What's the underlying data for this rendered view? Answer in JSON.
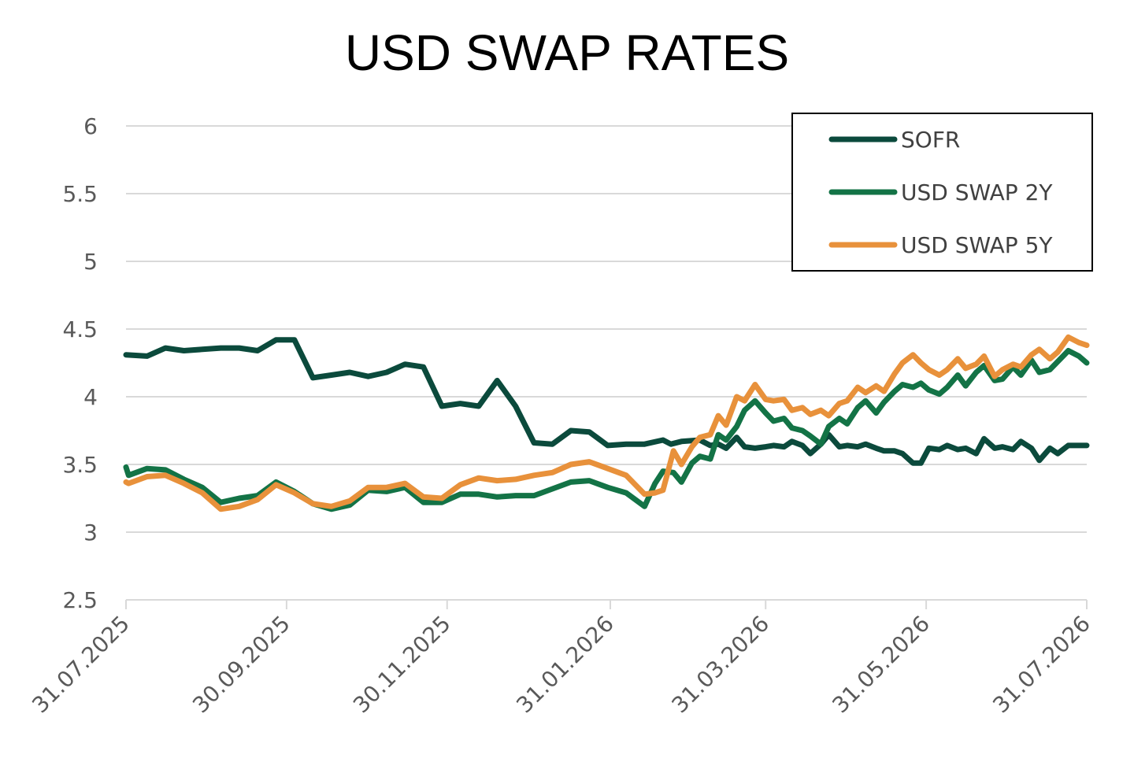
{
  "chart_data": {
    "type": "line",
    "title": "USD SWAP RATES",
    "xlabel": "",
    "ylabel": "",
    "ylim": [
      2.5,
      6
    ],
    "yticks": [
      "2.5",
      "3",
      "3.5",
      "4",
      "4.5",
      "5",
      "5.5",
      "6"
    ],
    "xlim": [
      "2025-07-31",
      "2026-07-31"
    ],
    "xticks": [
      {
        "date": "2025-07-31",
        "label": "31.07.2025"
      },
      {
        "date": "2025-09-30",
        "label": "30.09.2025"
      },
      {
        "date": "2025-11-30",
        "label": "30.11.2025"
      },
      {
        "date": "2026-01-31",
        "label": "31.01.2026"
      },
      {
        "date": "2026-03-31",
        "label": "31.03.2026"
      },
      {
        "date": "2026-05-31",
        "label": "31.05.2026"
      },
      {
        "date": "2026-07-31",
        "label": "31.07.2026"
      }
    ],
    "grid": true,
    "legend_position": "top-right",
    "series": [
      {
        "name": "SOFR",
        "color": "#0b4a3c",
        "points": [
          [
            "2025-07-31",
            4.31
          ],
          [
            "2025-08-08",
            4.3
          ],
          [
            "2025-08-15",
            4.36
          ],
          [
            "2025-08-22",
            4.34
          ],
          [
            "2025-08-29",
            4.35
          ],
          [
            "2025-09-05",
            4.36
          ],
          [
            "2025-09-12",
            4.36
          ],
          [
            "2025-09-19",
            4.34
          ],
          [
            "2025-09-26",
            4.42
          ],
          [
            "2025-10-03",
            4.42
          ],
          [
            "2025-10-10",
            4.14
          ],
          [
            "2025-10-17",
            4.16
          ],
          [
            "2025-10-24",
            4.18
          ],
          [
            "2025-10-31",
            4.15
          ],
          [
            "2025-11-07",
            4.18
          ],
          [
            "2025-11-14",
            4.24
          ],
          [
            "2025-11-21",
            4.22
          ],
          [
            "2025-11-28",
            3.93
          ],
          [
            "2025-12-05",
            3.95
          ],
          [
            "2025-12-12",
            3.93
          ],
          [
            "2025-12-19",
            4.12
          ],
          [
            "2025-12-26",
            3.93
          ],
          [
            "2026-01-02",
            3.66
          ],
          [
            "2026-01-09",
            3.65
          ],
          [
            "2026-01-16",
            3.75
          ],
          [
            "2026-01-23",
            3.74
          ],
          [
            "2026-01-30",
            3.64
          ],
          [
            "2026-02-06",
            3.65
          ],
          [
            "2026-02-13",
            3.65
          ],
          [
            "2026-02-20",
            3.68
          ],
          [
            "2026-02-23",
            3.65
          ],
          [
            "2026-02-27",
            3.67
          ],
          [
            "2026-03-06",
            3.68
          ],
          [
            "2026-03-10",
            3.64
          ],
          [
            "2026-03-13",
            3.65
          ],
          [
            "2026-03-16",
            3.62
          ],
          [
            "2026-03-20",
            3.7
          ],
          [
            "2026-03-23",
            3.63
          ],
          [
            "2026-03-27",
            3.62
          ],
          [
            "2026-03-31",
            3.63
          ],
          [
            "2026-04-03",
            3.64
          ],
          [
            "2026-04-07",
            3.63
          ],
          [
            "2026-04-10",
            3.67
          ],
          [
            "2026-04-14",
            3.64
          ],
          [
            "2026-04-17",
            3.58
          ],
          [
            "2026-04-21",
            3.65
          ],
          [
            "2026-04-24",
            3.72
          ],
          [
            "2026-04-28",
            3.63
          ],
          [
            "2026-05-01",
            3.64
          ],
          [
            "2026-05-05",
            3.63
          ],
          [
            "2026-05-08",
            3.65
          ],
          [
            "2026-05-12",
            3.62
          ],
          [
            "2026-05-15",
            3.6
          ],
          [
            "2026-05-19",
            3.6
          ],
          [
            "2026-05-22",
            3.58
          ],
          [
            "2026-05-26",
            3.51
          ],
          [
            "2026-05-29",
            3.51
          ],
          [
            "2026-06-01",
            3.62
          ],
          [
            "2026-06-05",
            3.61
          ],
          [
            "2026-06-08",
            3.64
          ],
          [
            "2026-06-12",
            3.61
          ],
          [
            "2026-06-15",
            3.62
          ],
          [
            "2026-06-19",
            3.58
          ],
          [
            "2026-06-22",
            3.69
          ],
          [
            "2026-06-26",
            3.62
          ],
          [
            "2026-06-29",
            3.63
          ],
          [
            "2026-07-03",
            3.61
          ],
          [
            "2026-07-06",
            3.67
          ],
          [
            "2026-07-10",
            3.62
          ],
          [
            "2026-07-13",
            3.53
          ],
          [
            "2026-07-17",
            3.62
          ],
          [
            "2026-07-20",
            3.58
          ],
          [
            "2026-07-24",
            3.64
          ],
          [
            "2026-07-31",
            3.64
          ]
        ]
      },
      {
        "name": "USD SWAP 2Y",
        "color": "#137346",
        "points": [
          [
            "2025-07-31",
            3.48
          ],
          [
            "2025-08-01",
            3.42
          ],
          [
            "2025-08-08",
            3.47
          ],
          [
            "2025-08-15",
            3.46
          ],
          [
            "2025-08-22",
            3.39
          ],
          [
            "2025-08-29",
            3.33
          ],
          [
            "2025-09-05",
            3.22
          ],
          [
            "2025-09-12",
            3.25
          ],
          [
            "2025-09-19",
            3.27
          ],
          [
            "2025-09-26",
            3.37
          ],
          [
            "2025-10-03",
            3.3
          ],
          [
            "2025-10-10",
            3.21
          ],
          [
            "2025-10-17",
            3.17
          ],
          [
            "2025-10-24",
            3.2
          ],
          [
            "2025-10-31",
            3.31
          ],
          [
            "2025-11-07",
            3.3
          ],
          [
            "2025-11-14",
            3.33
          ],
          [
            "2025-11-21",
            3.22
          ],
          [
            "2025-11-28",
            3.22
          ],
          [
            "2025-12-05",
            3.28
          ],
          [
            "2025-12-12",
            3.28
          ],
          [
            "2025-12-19",
            3.26
          ],
          [
            "2025-12-26",
            3.27
          ],
          [
            "2026-01-02",
            3.27
          ],
          [
            "2026-01-09",
            3.32
          ],
          [
            "2026-01-16",
            3.37
          ],
          [
            "2026-01-23",
            3.38
          ],
          [
            "2026-01-30",
            3.33
          ],
          [
            "2026-02-06",
            3.29
          ],
          [
            "2026-02-13",
            3.19
          ],
          [
            "2026-02-17",
            3.36
          ],
          [
            "2026-02-20",
            3.45
          ],
          [
            "2026-02-24",
            3.44
          ],
          [
            "2026-02-27",
            3.37
          ],
          [
            "2026-03-03",
            3.51
          ],
          [
            "2026-03-06",
            3.56
          ],
          [
            "2026-03-10",
            3.54
          ],
          [
            "2026-03-13",
            3.72
          ],
          [
            "2026-03-16",
            3.68
          ],
          [
            "2026-03-20",
            3.78
          ],
          [
            "2026-03-23",
            3.9
          ],
          [
            "2026-03-27",
            3.97
          ],
          [
            "2026-03-31",
            3.88
          ],
          [
            "2026-04-03",
            3.82
          ],
          [
            "2026-04-07",
            3.84
          ],
          [
            "2026-04-10",
            3.77
          ],
          [
            "2026-04-14",
            3.75
          ],
          [
            "2026-04-17",
            3.71
          ],
          [
            "2026-04-21",
            3.65
          ],
          [
            "2026-04-24",
            3.78
          ],
          [
            "2026-04-28",
            3.84
          ],
          [
            "2026-05-01",
            3.8
          ],
          [
            "2026-05-05",
            3.92
          ],
          [
            "2026-05-08",
            3.97
          ],
          [
            "2026-05-12",
            3.88
          ],
          [
            "2026-05-15",
            3.96
          ],
          [
            "2026-05-19",
            4.04
          ],
          [
            "2026-05-22",
            4.09
          ],
          [
            "2026-05-26",
            4.07
          ],
          [
            "2026-05-29",
            4.1
          ],
          [
            "2026-06-01",
            4.05
          ],
          [
            "2026-06-05",
            4.02
          ],
          [
            "2026-06-08",
            4.07
          ],
          [
            "2026-06-12",
            4.16
          ],
          [
            "2026-06-15",
            4.08
          ],
          [
            "2026-06-19",
            4.18
          ],
          [
            "2026-06-22",
            4.23
          ],
          [
            "2026-06-26",
            4.12
          ],
          [
            "2026-06-29",
            4.13
          ],
          [
            "2026-07-03",
            4.22
          ],
          [
            "2026-07-06",
            4.16
          ],
          [
            "2026-07-10",
            4.27
          ],
          [
            "2026-07-13",
            4.18
          ],
          [
            "2026-07-17",
            4.2
          ],
          [
            "2026-07-20",
            4.26
          ],
          [
            "2026-07-24",
            4.34
          ],
          [
            "2026-07-28",
            4.3
          ],
          [
            "2026-07-31",
            4.25
          ]
        ]
      },
      {
        "name": "USD SWAP 5Y",
        "color": "#e8913b",
        "points": [
          [
            "2025-07-31",
            3.37
          ],
          [
            "2025-08-01",
            3.36
          ],
          [
            "2025-08-08",
            3.41
          ],
          [
            "2025-08-15",
            3.42
          ],
          [
            "2025-08-22",
            3.36
          ],
          [
            "2025-08-29",
            3.29
          ],
          [
            "2025-09-05",
            3.17
          ],
          [
            "2025-09-12",
            3.19
          ],
          [
            "2025-09-19",
            3.24
          ],
          [
            "2025-09-26",
            3.35
          ],
          [
            "2025-10-03",
            3.29
          ],
          [
            "2025-10-10",
            3.21
          ],
          [
            "2025-10-17",
            3.19
          ],
          [
            "2025-10-24",
            3.23
          ],
          [
            "2025-10-31",
            3.33
          ],
          [
            "2025-11-07",
            3.33
          ],
          [
            "2025-11-14",
            3.36
          ],
          [
            "2025-11-21",
            3.26
          ],
          [
            "2025-11-28",
            3.25
          ],
          [
            "2025-12-05",
            3.35
          ],
          [
            "2025-12-12",
            3.4
          ],
          [
            "2025-12-19",
            3.38
          ],
          [
            "2025-12-26",
            3.39
          ],
          [
            "2026-01-02",
            3.42
          ],
          [
            "2026-01-09",
            3.44
          ],
          [
            "2026-01-16",
            3.5
          ],
          [
            "2026-01-23",
            3.52
          ],
          [
            "2026-01-30",
            3.47
          ],
          [
            "2026-02-06",
            3.42
          ],
          [
            "2026-02-13",
            3.28
          ],
          [
            "2026-02-17",
            3.29
          ],
          [
            "2026-02-20",
            3.31
          ],
          [
            "2026-02-24",
            3.6
          ],
          [
            "2026-02-27",
            3.5
          ],
          [
            "2026-03-03",
            3.63
          ],
          [
            "2026-03-06",
            3.7
          ],
          [
            "2026-03-10",
            3.72
          ],
          [
            "2026-03-13",
            3.86
          ],
          [
            "2026-03-16",
            3.79
          ],
          [
            "2026-03-20",
            4.0
          ],
          [
            "2026-03-23",
            3.97
          ],
          [
            "2026-03-27",
            4.09
          ],
          [
            "2026-03-31",
            3.98
          ],
          [
            "2026-04-03",
            3.97
          ],
          [
            "2026-04-07",
            3.98
          ],
          [
            "2026-04-10",
            3.9
          ],
          [
            "2026-04-14",
            3.92
          ],
          [
            "2026-04-17",
            3.87
          ],
          [
            "2026-04-21",
            3.9
          ],
          [
            "2026-04-24",
            3.86
          ],
          [
            "2026-04-28",
            3.95
          ],
          [
            "2026-05-01",
            3.97
          ],
          [
            "2026-05-05",
            4.07
          ],
          [
            "2026-05-08",
            4.03
          ],
          [
            "2026-05-12",
            4.08
          ],
          [
            "2026-05-15",
            4.04
          ],
          [
            "2026-05-19",
            4.17
          ],
          [
            "2026-05-22",
            4.25
          ],
          [
            "2026-05-26",
            4.31
          ],
          [
            "2026-05-29",
            4.25
          ],
          [
            "2026-06-01",
            4.2
          ],
          [
            "2026-06-05",
            4.16
          ],
          [
            "2026-06-08",
            4.2
          ],
          [
            "2026-06-12",
            4.28
          ],
          [
            "2026-06-15",
            4.21
          ],
          [
            "2026-06-19",
            4.24
          ],
          [
            "2026-06-22",
            4.3
          ],
          [
            "2026-06-26",
            4.15
          ],
          [
            "2026-06-29",
            4.2
          ],
          [
            "2026-07-03",
            4.24
          ],
          [
            "2026-07-06",
            4.22
          ],
          [
            "2026-07-10",
            4.31
          ],
          [
            "2026-07-13",
            4.35
          ],
          [
            "2026-07-17",
            4.28
          ],
          [
            "2026-07-20",
            4.33
          ],
          [
            "2026-07-24",
            4.44
          ],
          [
            "2026-07-28",
            4.4
          ],
          [
            "2026-07-31",
            4.38
          ]
        ]
      }
    ]
  }
}
